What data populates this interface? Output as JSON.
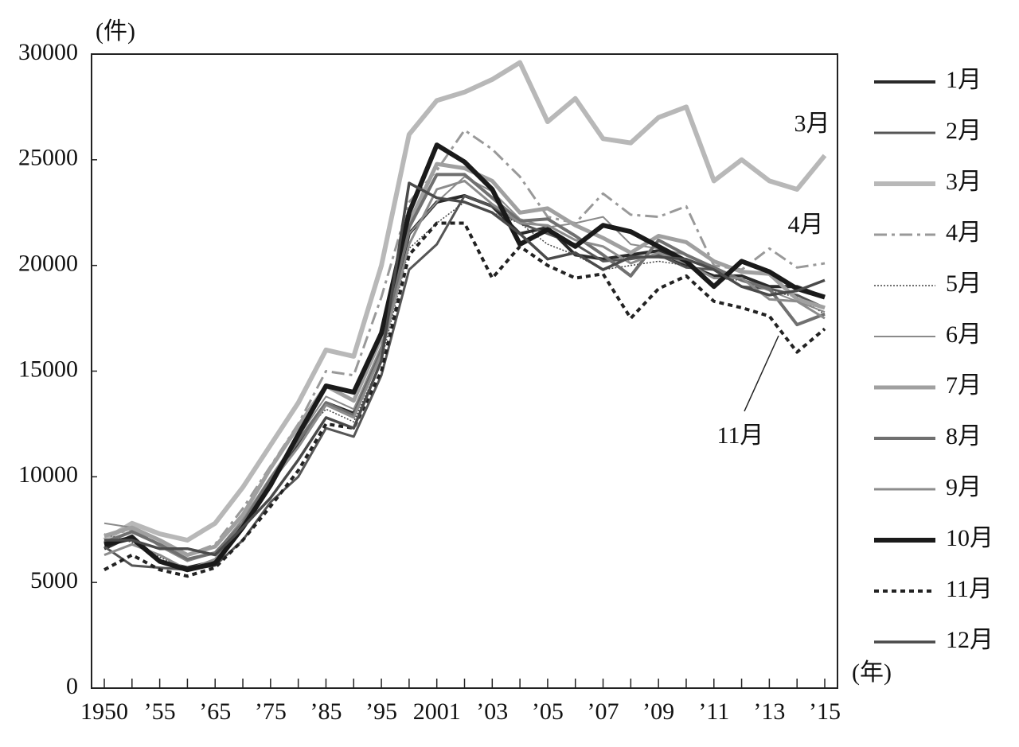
{
  "chart_data": {
    "type": "line",
    "y_unit": "(件)",
    "x_unit": "(年)",
    "categories": [
      "1950",
      null,
      "’55",
      null,
      "’65",
      null,
      "’75",
      null,
      "’85",
      null,
      "’95",
      null,
      "2001",
      null,
      "’03",
      null,
      "’05",
      null,
      "’07",
      null,
      "’09",
      null,
      "’11",
      null,
      "’13",
      null,
      "’15"
    ],
    "ylim": [
      0,
      30000
    ],
    "yticks": [
      0,
      5000,
      10000,
      15000,
      20000,
      25000,
      30000
    ],
    "annotations": [
      "3月",
      "4月",
      "11月"
    ],
    "series": [
      {
        "name": "1月",
        "color": "#2a2a2a",
        "width": 4,
        "dash": "none",
        "values": [
          6600,
          7200,
          6000,
          5700,
          6000,
          7800,
          9800,
          11500,
          13500,
          13000,
          16000,
          21500,
          23000,
          23300,
          22800,
          21500,
          21800,
          20500,
          20300,
          20500,
          20700,
          20000,
          19500,
          19500,
          19000,
          19000,
          18500
        ]
      },
      {
        "name": "2月",
        "color": "#555555",
        "width": 3,
        "dash": "none",
        "values": [
          6700,
          5800,
          5700,
          5600,
          5800,
          7000,
          8800,
          10000,
          12300,
          11900,
          14800,
          19800,
          21000,
          23300,
          22800,
          22000,
          21500,
          21000,
          20200,
          20300,
          20500,
          19900,
          19800,
          19000,
          18900,
          18600,
          18000
        ]
      },
      {
        "name": "3月",
        "color": "#b8b8b8",
        "width": 6,
        "dash": "none",
        "values": [
          7000,
          7800,
          7300,
          7000,
          7800,
          9500,
          11500,
          13500,
          16000,
          15700,
          20000,
          26200,
          27800,
          28200,
          28800,
          29600,
          26800,
          27900,
          26000,
          25800,
          27000,
          27500,
          24000,
          25000,
          24000,
          23600,
          25200
        ]
      },
      {
        "name": "4月",
        "color": "#999999",
        "width": 3,
        "dash": "16 6 4 6",
        "values": [
          7200,
          7500,
          6800,
          6300,
          6800,
          8500,
          10500,
          12500,
          15000,
          14800,
          18500,
          23000,
          24500,
          26400,
          25500,
          24200,
          22300,
          22000,
          23400,
          22400,
          22300,
          22800,
          20000,
          19800,
          20800,
          19900,
          20100
        ]
      },
      {
        "name": "5月",
        "color": "#444444",
        "width": 1.5,
        "dash": "2 2",
        "values": [
          7300,
          6900,
          6200,
          5600,
          6100,
          7500,
          9500,
          11800,
          13200,
          12600,
          15500,
          20800,
          22000,
          23000,
          22500,
          22000,
          21000,
          20500,
          19800,
          20000,
          20200,
          20000,
          19400,
          19300,
          18800,
          18500,
          17700
        ]
      },
      {
        "name": "6月",
        "color": "#8a8a8a",
        "width": 2,
        "dash": "none",
        "values": [
          7800,
          7600,
          6700,
          6000,
          6400,
          8000,
          10000,
          11900,
          13800,
          13200,
          16200,
          21500,
          23000,
          24200,
          23500,
          22200,
          21800,
          22000,
          22300,
          21000,
          20800,
          20500,
          19800,
          19300,
          18800,
          18300,
          17800
        ]
      },
      {
        "name": "7月",
        "color": "#a0a0a0",
        "width": 5,
        "dash": "none",
        "values": [
          7200,
          7600,
          7000,
          6300,
          6700,
          8200,
          10400,
          12400,
          14300,
          13600,
          16600,
          22000,
          24800,
          24600,
          24000,
          22500,
          22700,
          21900,
          21300,
          20600,
          21400,
          21100,
          20200,
          19700,
          19600,
          18400,
          18000
        ]
      },
      {
        "name": "8月",
        "color": "#707070",
        "width": 4,
        "dash": "none",
        "values": [
          6900,
          7400,
          6800,
          6100,
          6400,
          7800,
          9900,
          11700,
          13500,
          12900,
          15900,
          21800,
          24300,
          24300,
          23200,
          22100,
          22200,
          21400,
          20500,
          19500,
          21200,
          20500,
          19900,
          19300,
          18900,
          17200,
          17700
        ]
      },
      {
        "name": "9月",
        "color": "#8c8c8c",
        "width": 3,
        "dash": "none",
        "values": [
          6300,
          6800,
          6300,
          5600,
          6100,
          7600,
          9700,
          11400,
          13400,
          12800,
          15800,
          21000,
          23600,
          24000,
          22900,
          22000,
          21900,
          21200,
          20900,
          20100,
          20600,
          20100,
          19400,
          19400,
          18400,
          18300,
          17500
        ]
      },
      {
        "name": "10月",
        "color": "#1a1a1a",
        "width": 6,
        "dash": "none",
        "values": [
          6800,
          7100,
          6000,
          5600,
          5900,
          7600,
          9600,
          12000,
          14300,
          14000,
          16800,
          22500,
          25700,
          24900,
          23600,
          21000,
          21700,
          20900,
          21900,
          21600,
          20900,
          20200,
          19000,
          20200,
          19700,
          18900,
          18500
        ]
      },
      {
        "name": "11月",
        "color": "#222222",
        "width": 4,
        "dash": "6 5",
        "values": [
          5600,
          6300,
          5600,
          5300,
          5700,
          7000,
          8600,
          10300,
          12500,
          12300,
          15000,
          20500,
          22000,
          22000,
          19400,
          20900,
          20000,
          19400,
          19600,
          17500,
          18900,
          19500,
          18300,
          18000,
          17600,
          15900,
          17000
        ]
      },
      {
        "name": "12月",
        "color": "#4a4a4a",
        "width": 3.5,
        "dash": "none",
        "values": [
          7000,
          7000,
          6600,
          6600,
          6300,
          7600,
          9000,
          10800,
          12800,
          12300,
          15500,
          23900,
          23200,
          23000,
          22500,
          21500,
          20300,
          20600,
          19800,
          20400,
          20400,
          20300,
          19800,
          19000,
          18600,
          18800,
          19300
        ]
      }
    ]
  }
}
